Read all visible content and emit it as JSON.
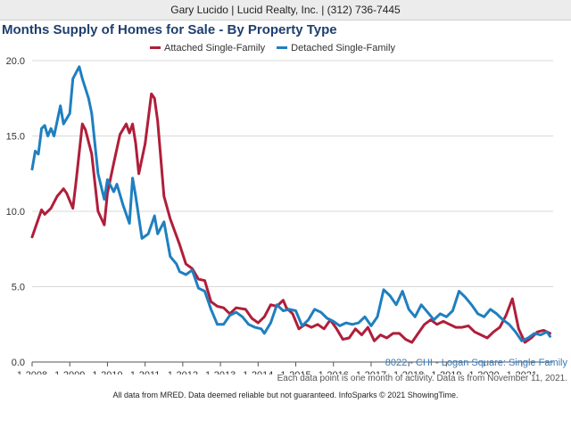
{
  "header": {
    "contact": "Gary Lucido | Lucid Realty, Inc. | (312) 736-7445"
  },
  "colors": {
    "attached": "#b01e3a",
    "detached": "#1f7fbf",
    "title": "#1f3f6f",
    "grid": "#d9d9d9"
  },
  "chart_data": {
    "type": "line",
    "title": "Months Supply of Homes for Sale - By Property Type",
    "xlabel": "",
    "ylabel": "",
    "ylim": [
      0,
      20
    ],
    "grid": true,
    "legend_position": "top-center",
    "yticks": [
      "0.0",
      "5.0",
      "10.0",
      "15.0",
      "20.0"
    ],
    "xticks": [
      "1-2008",
      "1-2009",
      "1-2010",
      "1-2011",
      "1-2012",
      "1-2013",
      "1-2014",
      "1-2015",
      "1-2016",
      "1-2017",
      "1-2018",
      "1-2019",
      "1-2020",
      "1-2021"
    ],
    "x_start": "2008-01",
    "series": [
      {
        "name": "Attached Single-Family",
        "color": "#b01e3a",
        "keypoints": [
          [
            "2008-01",
            8.3
          ],
          [
            "2008-04",
            10.1
          ],
          [
            "2008-05",
            9.8
          ],
          [
            "2008-07",
            10.2
          ],
          [
            "2008-09",
            11.0
          ],
          [
            "2008-11",
            11.5
          ],
          [
            "2008-12",
            11.2
          ],
          [
            "2009-02",
            10.2
          ],
          [
            "2009-03",
            12.0
          ],
          [
            "2009-05",
            15.8
          ],
          [
            "2009-06",
            15.4
          ],
          [
            "2009-08",
            13.8
          ],
          [
            "2009-10",
            10.0
          ],
          [
            "2009-12",
            9.1
          ],
          [
            "2010-01",
            11.2
          ],
          [
            "2010-03",
            13.2
          ],
          [
            "2010-05",
            15.1
          ],
          [
            "2010-07",
            15.8
          ],
          [
            "2010-08",
            15.2
          ],
          [
            "2010-09",
            15.8
          ],
          [
            "2010-10",
            14.5
          ],
          [
            "2010-11",
            12.5
          ],
          [
            "2011-01",
            14.5
          ],
          [
            "2011-03",
            17.8
          ],
          [
            "2011-04",
            17.5
          ],
          [
            "2011-05",
            16.0
          ],
          [
            "2011-07",
            11.0
          ],
          [
            "2011-09",
            9.5
          ],
          [
            "2011-12",
            7.8
          ],
          [
            "2012-02",
            6.5
          ],
          [
            "2012-04",
            6.2
          ],
          [
            "2012-06",
            5.5
          ],
          [
            "2012-08",
            5.4
          ],
          [
            "2012-10",
            4.0
          ],
          [
            "2012-12",
            3.7
          ],
          [
            "2013-02",
            3.6
          ],
          [
            "2013-04",
            3.2
          ],
          [
            "2013-06",
            3.6
          ],
          [
            "2013-09",
            3.5
          ],
          [
            "2013-11",
            2.9
          ],
          [
            "2014-01",
            2.6
          ],
          [
            "2014-03",
            3.0
          ],
          [
            "2014-05",
            3.8
          ],
          [
            "2014-07",
            3.7
          ],
          [
            "2014-09",
            4.1
          ],
          [
            "2014-10",
            3.6
          ],
          [
            "2014-12",
            3.2
          ],
          [
            "2015-02",
            2.2
          ],
          [
            "2015-04",
            2.5
          ],
          [
            "2015-06",
            2.3
          ],
          [
            "2015-08",
            2.5
          ],
          [
            "2015-10",
            2.2
          ],
          [
            "2015-12",
            2.8
          ],
          [
            "2016-02",
            2.2
          ],
          [
            "2016-04",
            1.5
          ],
          [
            "2016-06",
            1.6
          ],
          [
            "2016-08",
            2.2
          ],
          [
            "2016-10",
            1.8
          ],
          [
            "2016-12",
            2.3
          ],
          [
            "2017-02",
            1.4
          ],
          [
            "2017-04",
            1.8
          ],
          [
            "2017-06",
            1.6
          ],
          [
            "2017-08",
            1.9
          ],
          [
            "2017-10",
            1.9
          ],
          [
            "2017-12",
            1.5
          ],
          [
            "2018-02",
            1.3
          ],
          [
            "2018-04",
            1.9
          ],
          [
            "2018-06",
            2.5
          ],
          [
            "2018-08",
            2.8
          ],
          [
            "2018-10",
            2.5
          ],
          [
            "2018-12",
            2.7
          ],
          [
            "2019-02",
            2.5
          ],
          [
            "2019-04",
            2.3
          ],
          [
            "2019-06",
            2.3
          ],
          [
            "2019-08",
            2.4
          ],
          [
            "2019-10",
            2.0
          ],
          [
            "2019-12",
            1.8
          ],
          [
            "2020-02",
            1.6
          ],
          [
            "2020-04",
            2.0
          ],
          [
            "2020-06",
            2.3
          ],
          [
            "2020-08",
            3.1
          ],
          [
            "2020-10",
            4.2
          ],
          [
            "2020-12",
            2.2
          ],
          [
            "2021-02",
            1.3
          ],
          [
            "2021-04",
            1.6
          ],
          [
            "2021-06",
            2.0
          ],
          [
            "2021-08",
            2.1
          ],
          [
            "2021-10",
            1.9
          ]
        ]
      },
      {
        "name": "Detached Single-Family",
        "color": "#1f7fbf",
        "keypoints": [
          [
            "2008-01",
            12.8
          ],
          [
            "2008-02",
            14.0
          ],
          [
            "2008-03",
            13.8
          ],
          [
            "2008-04",
            15.5
          ],
          [
            "2008-05",
            15.7
          ],
          [
            "2008-06",
            15.0
          ],
          [
            "2008-07",
            15.5
          ],
          [
            "2008-08",
            15.0
          ],
          [
            "2008-10",
            17.0
          ],
          [
            "2008-11",
            15.8
          ],
          [
            "2009-01",
            16.5
          ],
          [
            "2009-02",
            18.8
          ],
          [
            "2009-04",
            19.6
          ],
          [
            "2009-05",
            18.8
          ],
          [
            "2009-07",
            17.5
          ],
          [
            "2009-08",
            16.5
          ],
          [
            "2009-10",
            12.5
          ],
          [
            "2009-12",
            10.8
          ],
          [
            "2010-01",
            12.1
          ],
          [
            "2010-03",
            11.3
          ],
          [
            "2010-04",
            11.8
          ],
          [
            "2010-06",
            10.4
          ],
          [
            "2010-08",
            9.2
          ],
          [
            "2010-09",
            12.2
          ],
          [
            "2010-10",
            11.0
          ],
          [
            "2010-12",
            8.2
          ],
          [
            "2011-02",
            8.5
          ],
          [
            "2011-04",
            9.7
          ],
          [
            "2011-05",
            8.5
          ],
          [
            "2011-07",
            9.3
          ],
          [
            "2011-09",
            7.0
          ],
          [
            "2011-11",
            6.5
          ],
          [
            "2011-12",
            6.0
          ],
          [
            "2012-02",
            5.8
          ],
          [
            "2012-04",
            6.1
          ],
          [
            "2012-06",
            4.9
          ],
          [
            "2012-08",
            4.7
          ],
          [
            "2012-10",
            3.5
          ],
          [
            "2012-12",
            2.5
          ],
          [
            "2013-02",
            2.5
          ],
          [
            "2013-04",
            3.1
          ],
          [
            "2013-06",
            3.3
          ],
          [
            "2013-08",
            3.0
          ],
          [
            "2013-10",
            2.5
          ],
          [
            "2013-12",
            2.3
          ],
          [
            "2014-02",
            2.2
          ],
          [
            "2014-03",
            1.9
          ],
          [
            "2014-05",
            2.6
          ],
          [
            "2014-07",
            3.8
          ],
          [
            "2014-09",
            3.4
          ],
          [
            "2014-11",
            3.5
          ],
          [
            "2015-01",
            3.4
          ],
          [
            "2015-03",
            2.4
          ],
          [
            "2015-05",
            2.8
          ],
          [
            "2015-07",
            3.5
          ],
          [
            "2015-09",
            3.3
          ],
          [
            "2015-11",
            2.9
          ],
          [
            "2016-01",
            2.7
          ],
          [
            "2016-03",
            2.4
          ],
          [
            "2016-05",
            2.6
          ],
          [
            "2016-07",
            2.5
          ],
          [
            "2016-09",
            2.6
          ],
          [
            "2016-11",
            3.0
          ],
          [
            "2017-01",
            2.4
          ],
          [
            "2017-03",
            3.0
          ],
          [
            "2017-05",
            4.8
          ],
          [
            "2017-07",
            4.4
          ],
          [
            "2017-09",
            3.8
          ],
          [
            "2017-11",
            4.7
          ],
          [
            "2018-01",
            3.5
          ],
          [
            "2018-03",
            3.0
          ],
          [
            "2018-05",
            3.8
          ],
          [
            "2018-07",
            3.3
          ],
          [
            "2018-09",
            2.8
          ],
          [
            "2018-11",
            3.2
          ],
          [
            "2019-01",
            3.0
          ],
          [
            "2019-03",
            3.4
          ],
          [
            "2019-05",
            4.7
          ],
          [
            "2019-07",
            4.3
          ],
          [
            "2019-09",
            3.8
          ],
          [
            "2019-11",
            3.2
          ],
          [
            "2020-01",
            3.0
          ],
          [
            "2020-03",
            3.5
          ],
          [
            "2020-05",
            3.2
          ],
          [
            "2020-07",
            2.8
          ],
          [
            "2020-09",
            2.5
          ],
          [
            "2020-11",
            2.0
          ],
          [
            "2021-01",
            1.4
          ],
          [
            "2021-03",
            1.6
          ],
          [
            "2021-05",
            1.9
          ],
          [
            "2021-07",
            1.8
          ],
          [
            "2021-09",
            2.0
          ],
          [
            "2021-10",
            1.7
          ]
        ]
      }
    ]
  },
  "footer": {
    "area": "8022 - CHI - Logan Square: Single Family",
    "note": "Each data point is one month of activity. Data is from November 11, 2021.",
    "disclaimer": "All data from MRED. Data deemed reliable but not guaranteed. InfoSparks © 2021 ShowingTime."
  }
}
